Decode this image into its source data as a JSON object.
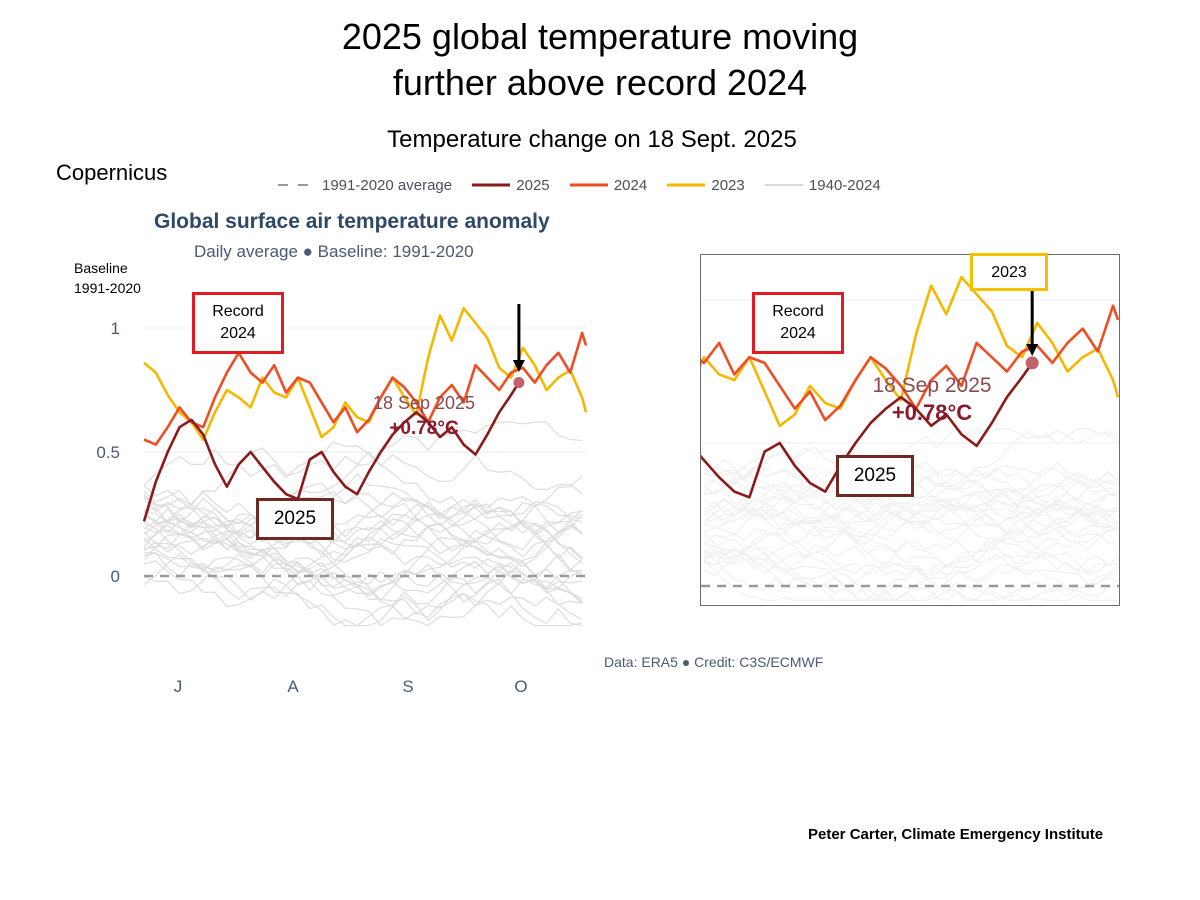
{
  "header": {
    "title_line1": "2025 global temperature moving",
    "title_line2": "further above record 2024",
    "subtitle": "Temperature change on 18 Sept. 2025",
    "source": "Copernicus",
    "credit": "Peter Carter, Climate Emergency Institute"
  },
  "legend": [
    "1991-2020 average",
    "2025",
    "2024",
    "2023",
    "1940-2024"
  ],
  "colors": {
    "y2025": "#8b1a1a",
    "y2024": "#ef4d23",
    "y2023": "#f5b800",
    "historical": "#d9d9d9",
    "average": "#9a9a9a",
    "marker": "#c0616b",
    "box_red": "#e11b22",
    "box_brown": "#6e2a22",
    "box_yellow": "#f5c000"
  },
  "panel": {
    "title": "Global surface air temperature anomaly",
    "subtitle": "Daily average ● Baseline: 1991-2020",
    "baseline_label_line1": "Baseline",
    "baseline_label_line2": "1991-2020",
    "footnote": "Data: ERA5 ● Credit: C3S/ECMWF"
  },
  "annotations": {
    "record_line1": "Record",
    "record_line2": "2024",
    "year_2025": "2025",
    "year_2023": "2023",
    "marker_date": "18 Sep 2025",
    "marker_value": "+0.78°C"
  },
  "chart_data": {
    "type": "line",
    "title": "Global surface air temperature anomaly",
    "subtitle": "Daily average ● Baseline: 1991-2020",
    "xlabel": "",
    "ylabel": "",
    "x_tick_labels": [
      "J",
      "A",
      "S",
      "O"
    ],
    "y_ticks": [
      0,
      0.5,
      1
    ],
    "ylim": [
      -0.2,
      1.15
    ],
    "x_range_days": [
      0,
      112
    ],
    "grid": true,
    "legend_position": "top",
    "x_unit": "days since 15 June",
    "series": [
      {
        "name": "2025",
        "x": [
          0,
          3,
          6,
          9,
          12,
          15,
          18,
          21,
          24,
          27,
          30,
          33,
          36,
          39,
          42,
          45,
          48,
          51,
          54,
          57,
          60,
          63,
          66,
          69,
          72,
          75,
          78,
          81,
          84,
          87,
          90,
          93,
          95
        ],
        "y": [
          0.22,
          0.38,
          0.5,
          0.6,
          0.63,
          0.57,
          0.45,
          0.36,
          0.45,
          0.5,
          0.44,
          0.38,
          0.33,
          0.31,
          0.47,
          0.5,
          0.42,
          0.36,
          0.33,
          0.42,
          0.5,
          0.57,
          0.62,
          0.66,
          0.62,
          0.56,
          0.6,
          0.53,
          0.49,
          0.57,
          0.66,
          0.73,
          0.78
        ]
      },
      {
        "name": "2024",
        "x": [
          0,
          3,
          6,
          9,
          12,
          15,
          18,
          21,
          24,
          27,
          30,
          33,
          36,
          39,
          42,
          45,
          48,
          51,
          54,
          57,
          60,
          63,
          66,
          69,
          72,
          75,
          78,
          81,
          84,
          87,
          90,
          93,
          96,
          99,
          102,
          105,
          108,
          111,
          112
        ],
        "y": [
          0.55,
          0.53,
          0.6,
          0.68,
          0.62,
          0.6,
          0.72,
          0.82,
          0.9,
          0.82,
          0.78,
          0.85,
          0.74,
          0.8,
          0.78,
          0.7,
          0.62,
          0.68,
          0.58,
          0.63,
          0.72,
          0.8,
          0.76,
          0.7,
          0.62,
          0.72,
          0.77,
          0.7,
          0.85,
          0.8,
          0.75,
          0.82,
          0.84,
          0.78,
          0.85,
          0.9,
          0.82,
          0.98,
          0.93
        ]
      },
      {
        "name": "2023",
        "x": [
          0,
          3,
          6,
          9,
          12,
          15,
          18,
          21,
          24,
          27,
          30,
          33,
          36,
          39,
          42,
          45,
          48,
          51,
          54,
          57,
          60,
          63,
          66,
          69,
          72,
          75,
          78,
          81,
          84,
          87,
          90,
          93,
          96,
          99,
          102,
          105,
          108,
          111,
          112
        ],
        "y": [
          0.86,
          0.82,
          0.73,
          0.66,
          0.62,
          0.55,
          0.66,
          0.75,
          0.72,
          0.68,
          0.8,
          0.74,
          0.72,
          0.8,
          0.68,
          0.56,
          0.6,
          0.7,
          0.64,
          0.62,
          0.72,
          0.8,
          0.72,
          0.65,
          0.88,
          1.05,
          0.95,
          1.08,
          1.02,
          0.96,
          0.84,
          0.8,
          0.92,
          0.85,
          0.75,
          0.8,
          0.83,
          0.72,
          0.66
        ]
      },
      {
        "name": "1991-2020 average",
        "x": [
          0,
          112
        ],
        "y": [
          0,
          0
        ]
      }
    ],
    "highlight": {
      "series": "2025",
      "date": "18 Sep 2025",
      "value": 0.78
    }
  }
}
